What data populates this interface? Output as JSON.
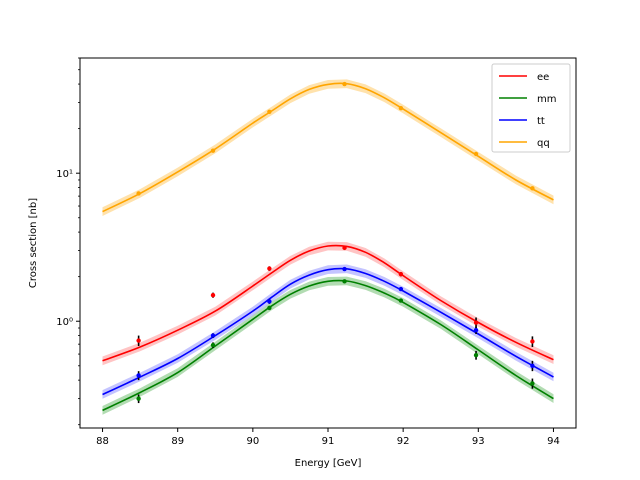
{
  "chart_data": {
    "type": "line",
    "title": "",
    "xlabel": "Energy [GeV]",
    "ylabel": "Cross section [nb]",
    "xlim": [
      87.7,
      94.3
    ],
    "ylim": [
      0.19,
      60
    ],
    "yscale": "log",
    "grid": false,
    "legend_position": "top-right",
    "x_ticks": [
      88,
      89,
      90,
      91,
      92,
      93,
      94
    ],
    "x_tick_labels": [
      "88",
      "89",
      "90",
      "91",
      "92",
      "93",
      "94"
    ],
    "y_ticks": [
      1,
      10
    ],
    "y_tick_labels": [
      "10⁰",
      "10¹"
    ],
    "series": [
      {
        "name": "ee",
        "color": "#ff0000",
        "band_color": "#ffb0b0",
        "fit_x": [
          88.0,
          88.5,
          89.0,
          89.5,
          90.0,
          90.25,
          90.5,
          90.75,
          91.0,
          91.25,
          91.5,
          91.75,
          92.0,
          92.5,
          93.0,
          93.5,
          94.0
        ],
        "fit_y": [
          0.54,
          0.67,
          0.87,
          1.17,
          1.73,
          2.12,
          2.58,
          2.98,
          3.22,
          3.2,
          2.92,
          2.48,
          2.03,
          1.38,
          0.98,
          0.72,
          0.55
        ],
        "points": [
          {
            "x": 88.48,
            "y": 0.74,
            "err": 0.06
          },
          {
            "x": 89.47,
            "y": 1.5,
            "err": 0.06
          },
          {
            "x": 90.22,
            "y": 2.27,
            "err": 0.08
          },
          {
            "x": 91.22,
            "y": 3.13,
            "err": 0.06
          },
          {
            "x": 91.97,
            "y": 2.08,
            "err": 0.07
          },
          {
            "x": 92.97,
            "y": 0.98,
            "err": 0.08
          },
          {
            "x": 93.72,
            "y": 0.73,
            "err": 0.06
          }
        ]
      },
      {
        "name": "mm",
        "color": "#008000",
        "band_color": "#98d098",
        "fit_x": [
          88.0,
          88.5,
          89.0,
          89.5,
          90.0,
          90.25,
          90.5,
          90.75,
          91.0,
          91.25,
          91.5,
          91.75,
          92.0,
          92.5,
          93.0,
          93.5,
          94.0
        ],
        "fit_y": [
          0.25,
          0.33,
          0.45,
          0.68,
          1.03,
          1.27,
          1.52,
          1.73,
          1.86,
          1.87,
          1.74,
          1.55,
          1.34,
          0.95,
          0.64,
          0.43,
          0.3
        ],
        "points": [
          {
            "x": 88.48,
            "y": 0.3,
            "err": 0.02
          },
          {
            "x": 89.47,
            "y": 0.69,
            "err": 0.03
          },
          {
            "x": 90.22,
            "y": 1.23,
            "err": 0.04
          },
          {
            "x": 91.22,
            "y": 1.86,
            "err": 0.04
          },
          {
            "x": 91.97,
            "y": 1.38,
            "err": 0.04
          },
          {
            "x": 92.97,
            "y": 0.59,
            "err": 0.04
          },
          {
            "x": 93.72,
            "y": 0.38,
            "err": 0.03
          }
        ]
      },
      {
        "name": "tt",
        "color": "#0000ff",
        "band_color": "#b0b0ff",
        "fit_x": [
          88.0,
          88.5,
          89.0,
          89.5,
          90.0,
          90.25,
          90.5,
          90.75,
          91.0,
          91.25,
          91.5,
          91.75,
          92.0,
          92.5,
          93.0,
          93.5,
          94.0
        ],
        "fit_y": [
          0.32,
          0.42,
          0.56,
          0.8,
          1.17,
          1.45,
          1.78,
          2.05,
          2.23,
          2.26,
          2.1,
          1.86,
          1.6,
          1.15,
          0.82,
          0.58,
          0.42
        ],
        "points": [
          {
            "x": 88.48,
            "y": 0.43,
            "err": 0.03
          },
          {
            "x": 89.47,
            "y": 0.8,
            "err": 0.03
          },
          {
            "x": 90.22,
            "y": 1.36,
            "err": 0.05
          },
          {
            "x": 91.22,
            "y": 2.25,
            "err": 0.05
          },
          {
            "x": 91.97,
            "y": 1.65,
            "err": 0.05
          },
          {
            "x": 92.97,
            "y": 0.87,
            "err": 0.05
          },
          {
            "x": 93.72,
            "y": 0.5,
            "err": 0.04
          }
        ]
      },
      {
        "name": "qq",
        "color": "#ffa500",
        "band_color": "#ffd890",
        "fit_x": [
          88.0,
          88.5,
          89.0,
          89.5,
          90.0,
          90.25,
          90.5,
          90.75,
          91.0,
          91.25,
          91.5,
          91.75,
          92.0,
          92.5,
          93.0,
          93.5,
          94.0
        ],
        "fit_y": [
          5.5,
          7.3,
          10.2,
          14.6,
          21.8,
          26.3,
          31.8,
          36.8,
          39.8,
          40.2,
          37.2,
          32.3,
          27.1,
          18.8,
          13.0,
          9.0,
          6.6
        ],
        "points": [
          {
            "x": 88.48,
            "y": 7.3,
            "err": 0.15
          },
          {
            "x": 89.47,
            "y": 14.2,
            "err": 0.2
          },
          {
            "x": 90.22,
            "y": 26.0,
            "err": 0.3
          },
          {
            "x": 91.22,
            "y": 40.0,
            "err": 0.4
          },
          {
            "x": 91.97,
            "y": 27.5,
            "err": 0.3
          },
          {
            "x": 92.97,
            "y": 13.5,
            "err": 0.2
          },
          {
            "x": 93.72,
            "y": 7.9,
            "err": 0.15
          }
        ]
      }
    ]
  }
}
